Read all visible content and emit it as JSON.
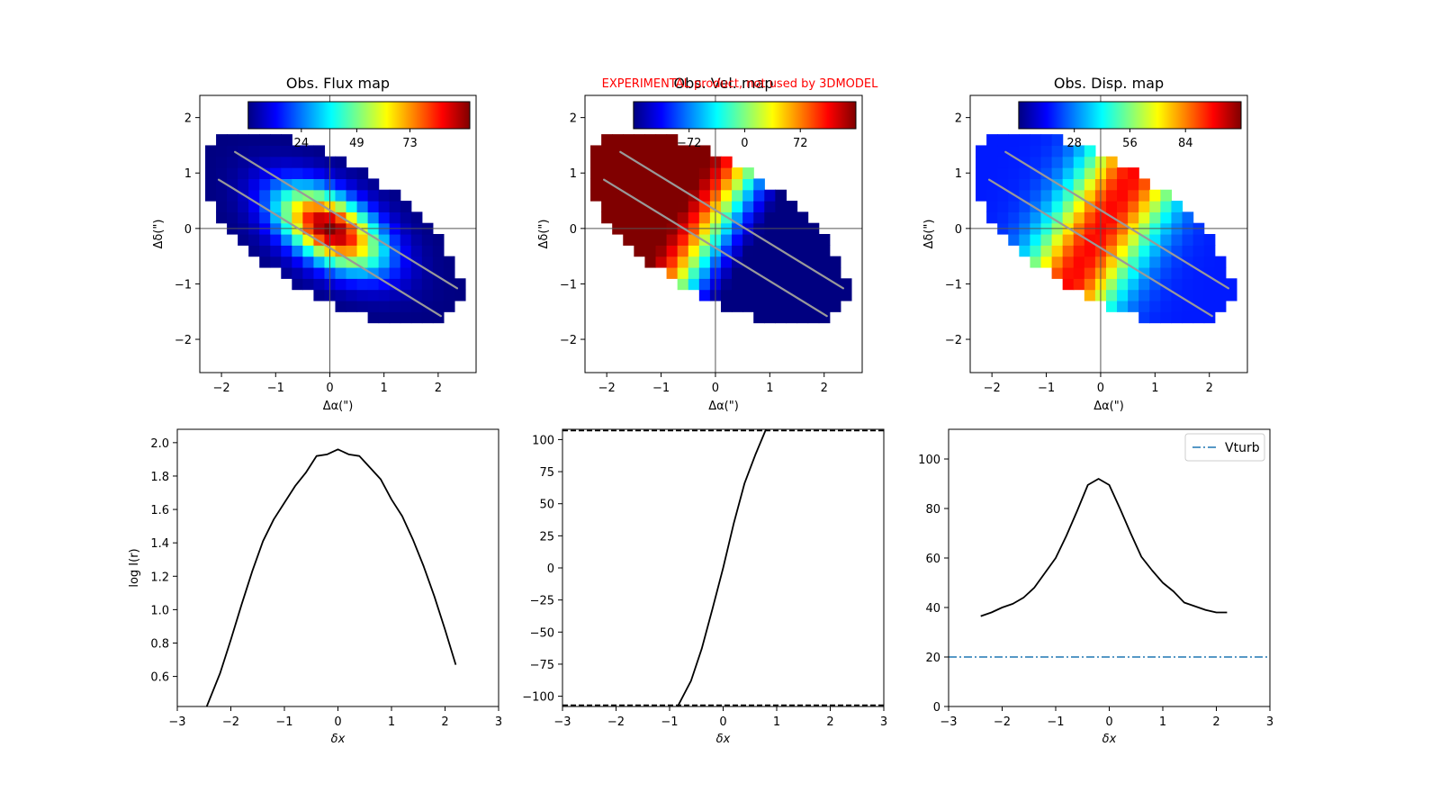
{
  "experimental_note": "EXPERIMENTAL product, not used by 3DMODEL",
  "chart_data": [
    {
      "type": "heatmap",
      "title": "Obs. Flux map",
      "xlabel": "Δα(\")",
      "ylabel": "Δδ(\")",
      "xlim": [
        -2.4,
        2.7
      ],
      "ylim": [
        -2.6,
        2.4
      ],
      "xticks": [
        -2,
        -1,
        0,
        1,
        2
      ],
      "yticks": [
        -2,
        -1,
        0,
        1,
        2
      ],
      "colorbar_ticks": [
        "24",
        "49",
        "73"
      ],
      "colorbar_tick_positions": [
        0.24,
        0.49,
        0.73
      ],
      "field": "flux",
      "slit_lines": [
        [
          -1.75,
          1.38,
          2.35,
          -1.08
        ],
        [
          -2.05,
          0.88,
          2.05,
          -1.58
        ]
      ]
    },
    {
      "type": "heatmap",
      "title": "Obs. Vel. map",
      "xlabel": "Δα(\")",
      "ylabel": "Δδ(\")",
      "xlim": [
        -2.4,
        2.7
      ],
      "ylim": [
        -2.6,
        2.4
      ],
      "xticks": [
        -2,
        -1,
        0,
        1,
        2
      ],
      "yticks": [
        -2,
        -1,
        0,
        1,
        2
      ],
      "colorbar_ticks": [
        "−72",
        "0",
        "72"
      ],
      "colorbar_tick_positions": [
        0.25,
        0.5,
        0.75
      ],
      "field": "velocity",
      "slit_lines": [
        [
          -1.75,
          1.38,
          2.35,
          -1.08
        ],
        [
          -2.05,
          0.88,
          2.05,
          -1.58
        ]
      ]
    },
    {
      "type": "heatmap",
      "title": "Obs. Disp. map",
      "xlabel": "Δα(\")",
      "ylabel": "Δδ(\")",
      "xlim": [
        -2.4,
        2.7
      ],
      "ylim": [
        -2.6,
        2.4
      ],
      "xticks": [
        -2,
        -1,
        0,
        1,
        2
      ],
      "yticks": [
        -2,
        -1,
        0,
        1,
        2
      ],
      "colorbar_ticks": [
        "28",
        "56",
        "84"
      ],
      "colorbar_tick_positions": [
        0.25,
        0.5,
        0.75
      ],
      "field": "dispersion",
      "slit_lines": [
        [
          -1.75,
          1.38,
          2.35,
          -1.08
        ],
        [
          -2.05,
          0.88,
          2.05,
          -1.58
        ]
      ]
    },
    {
      "type": "line",
      "xlabel": "δx",
      "ylabel": "log I(r)",
      "xlim": [
        -3,
        3
      ],
      "ylim": [
        0.42,
        2.08
      ],
      "xticks": [
        -3,
        -2,
        -1,
        0,
        1,
        2,
        3
      ],
      "yticks": [
        0.6,
        0.8,
        1.0,
        1.2,
        1.4,
        1.6,
        1.8,
        2.0
      ],
      "series": [
        {
          "color": "#000000",
          "x": [
            -2.45,
            -2.2,
            -2.0,
            -1.8,
            -1.6,
            -1.4,
            -1.2,
            -1.0,
            -0.8,
            -0.6,
            -0.4,
            -0.2,
            0.0,
            0.2,
            0.4,
            0.6,
            0.8,
            1.0,
            1.2,
            1.4,
            1.6,
            1.8,
            2.0,
            2.2
          ],
          "y": [
            0.42,
            0.62,
            0.82,
            1.03,
            1.23,
            1.41,
            1.54,
            1.64,
            1.74,
            1.82,
            1.92,
            1.93,
            1.96,
            1.93,
            1.92,
            1.85,
            1.78,
            1.66,
            1.56,
            1.42,
            1.26,
            1.08,
            0.88,
            0.67
          ]
        }
      ]
    },
    {
      "type": "line",
      "xlabel": "δx",
      "ylabel": "",
      "xlim": [
        -3,
        3
      ],
      "ylim": [
        -108,
        108
      ],
      "xticks": [
        -3,
        -2,
        -1,
        0,
        1,
        2,
        3
      ],
      "yticks": [
        -100,
        -75,
        -50,
        -25,
        0,
        25,
        50,
        75,
        100
      ],
      "series": [
        {
          "color": "#000000",
          "x": [
            -0.85,
            -0.6,
            -0.4,
            -0.2,
            0.0,
            0.2,
            0.4,
            0.6,
            0.8
          ],
          "y": [
            -108,
            -88,
            -63,
            -32,
            0,
            35,
            66,
            88,
            108
          ]
        }
      ],
      "hlines": [
        {
          "y": 107,
          "style": "dashed",
          "color": "#000000"
        },
        {
          "y": -107,
          "style": "dashed",
          "color": "#000000"
        }
      ]
    },
    {
      "type": "line",
      "xlabel": "δx",
      "ylabel": "",
      "xlim": [
        -3,
        3
      ],
      "ylim": [
        0,
        112
      ],
      "xticks": [
        -3,
        -2,
        -1,
        0,
        1,
        2,
        3
      ],
      "yticks": [
        0,
        20,
        40,
        60,
        80,
        100
      ],
      "legend": "top-right",
      "series": [
        {
          "color": "#000000",
          "x": [
            -2.4,
            -2.2,
            -2.0,
            -1.8,
            -1.6,
            -1.4,
            -1.2,
            -1.0,
            -0.8,
            -0.6,
            -0.4,
            -0.2,
            0.0,
            0.2,
            0.4,
            0.6,
            0.8,
            1.0,
            1.2,
            1.4,
            1.6,
            1.8,
            2.0,
            2.2
          ],
          "y": [
            36.5,
            38,
            40,
            41.5,
            44,
            48,
            54,
            60,
            69,
            79,
            89.5,
            92,
            89.5,
            80,
            70,
            60.5,
            55,
            50,
            46.5,
            42,
            40.5,
            39,
            38,
            38
          ]
        }
      ],
      "hlines": [
        {
          "y": 20,
          "style": "dashdot",
          "color": "#1f77b4",
          "name": "Vturb"
        }
      ]
    }
  ]
}
